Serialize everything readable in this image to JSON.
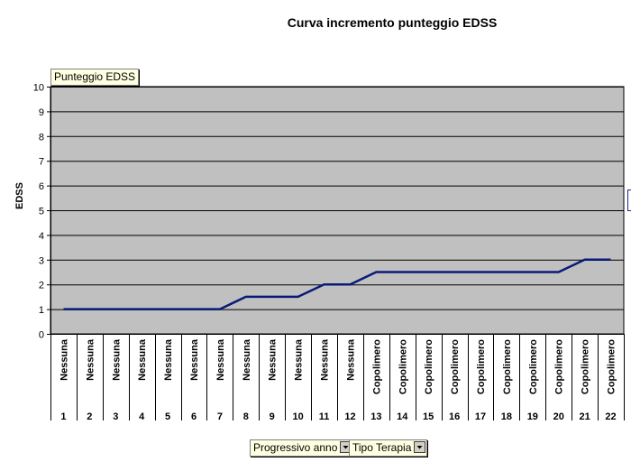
{
  "chart_data": {
    "type": "line",
    "title": "Curva incremento punteggio EDSS",
    "ylabel": "EDSS",
    "xlabel": "",
    "ylim": [
      0,
      10
    ],
    "y_ticks": [
      0,
      1,
      2,
      3,
      4,
      5,
      6,
      7,
      8,
      9,
      10
    ],
    "grid": true,
    "legend_position": "none",
    "categories": [
      "1",
      "2",
      "3",
      "4",
      "5",
      "6",
      "7",
      "8",
      "9",
      "10",
      "11",
      "12",
      "13",
      "14",
      "15",
      "16",
      "17",
      "18",
      "19",
      "20",
      "21",
      "22"
    ],
    "category_groups": [
      "Nessuna",
      "Nessuna",
      "Nessuna",
      "Nessuna",
      "Nessuna",
      "Nessuna",
      "Nessuna",
      "Nessuna",
      "Nessuna",
      "Nessuna",
      "Nessuna",
      "Nessuna",
      "Copolimero",
      "Copolimero",
      "Copolimero",
      "Copolimero",
      "Copolimero",
      "Copolimero",
      "Copolimero",
      "Copolimero",
      "Copolimero",
      "Copolimero"
    ],
    "series": [
      {
        "values": [
          1,
          1,
          1,
          1,
          1,
          1,
          1,
          1.5,
          1.5,
          1.5,
          2,
          2,
          2.5,
          2.5,
          2.5,
          2.5,
          2.5,
          2.5,
          2.5,
          2.5,
          3,
          3
        ],
        "color": "#0a1a78"
      }
    ],
    "plot_bg": "#c0c0c0",
    "gridline_color": "#000000"
  },
  "data_field": "Punteggio EDSS",
  "row_fields": [
    {
      "label": "Progressivo anno"
    },
    {
      "label": "Tipo Terapia"
    }
  ]
}
